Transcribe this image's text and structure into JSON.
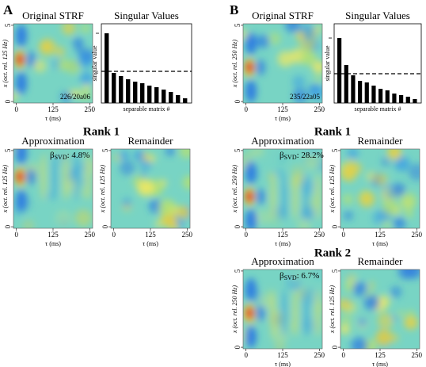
{
  "letters": [
    "A",
    "B"
  ],
  "ranks": [
    "Rank 1",
    "Rank 1",
    "Rank 2"
  ],
  "beta_symbol": "β",
  "beta_sub": "SVD",
  "axes": {
    "xlim": [
      -10,
      260
    ],
    "xticks": [
      0,
      125,
      250
    ],
    "ylim": [
      -0.1,
      5.1
    ],
    "yticks": [
      0,
      5
    ]
  },
  "heatmaps": [
    {
      "title": "Original STRF",
      "ylabel": "x (oct. rel. 125 Hz)",
      "xlabel": "τ (ms)",
      "note": "226/20a06"
    },
    {
      "title": "Approximation",
      "ylabel": "x (oct. rel. 125 Hz)",
      "xlabel": "τ (ms)",
      "beta": ": 4.8%"
    },
    {
      "title": "Remainder",
      "ylabel": "x (oct. rel. 125 Hz)",
      "xlabel": "τ (ms)"
    },
    {
      "title": "Original STRF",
      "ylabel": "x (oct. rel. 250 Hz)",
      "xlabel": "τ (ms)",
      "note": "235/22a05"
    },
    {
      "title": "Approximation",
      "ylabel": "x (oct. rel. 250 Hz)",
      "xlabel": "τ (ms)",
      "beta": ": 28.2%"
    },
    {
      "title": "Remainder",
      "ylabel": "x (oct. rel. 125 Hz)",
      "xlabel": "τ (ms)"
    },
    {
      "title": "Approximation",
      "ylabel": "x (oct. rel. 250 Hz)",
      "xlabel": "τ (ms)",
      "beta": ": 6.7%"
    },
    {
      "title": "Remainder",
      "ylabel": "x (oct. rel. 125 Hz)",
      "xlabel": "τ (ms)"
    }
  ],
  "chart_data": [
    {
      "type": "bar",
      "title": "Singular Values",
      "ylabel": "singular value",
      "xlabel": "separable matrix #",
      "values": [
        88,
        38,
        34,
        30,
        27,
        25,
        22,
        20,
        17,
        14,
        10,
        6
      ],
      "ylim": [
        0,
        100
      ],
      "threshold": 40,
      "color": "#000000"
    },
    {
      "type": "bar",
      "title": "Singular Values",
      "ylabel": "singular value",
      "xlabel": "separable matrix #",
      "values": [
        82,
        48,
        35,
        28,
        26,
        22,
        18,
        16,
        12,
        10,
        8,
        5
      ],
      "ylim": [
        0,
        100
      ],
      "threshold": 37,
      "color": "#000000"
    }
  ]
}
